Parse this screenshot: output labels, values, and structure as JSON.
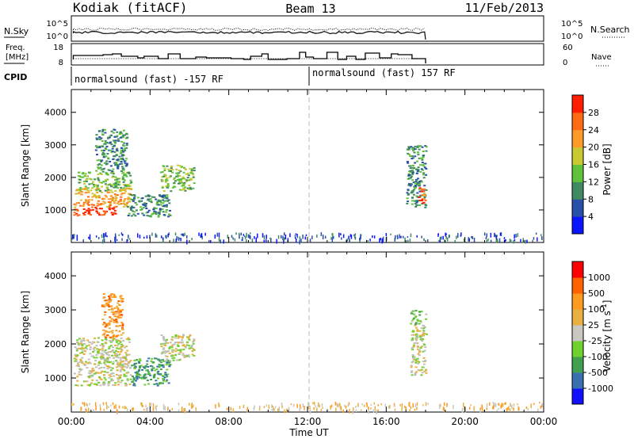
{
  "header": {
    "station": "Kodiak (fitACF)",
    "beam": "Beam 13",
    "date": "11/Feb/2013"
  },
  "summary_panels": {
    "nsky_label": "N.Sky",
    "nsearch_label": "N.Search",
    "freq_label_1": "Freq.",
    "freq_label_2": "[MHz]",
    "nave_label": "Nave",
    "cpid_label": "CPID",
    "noise_ticks_left": [
      "10^5",
      "10^0"
    ],
    "noise_ticks_right": [
      "10^5",
      "10^0"
    ],
    "freq_ticks_left": [
      "18",
      "8"
    ],
    "nave_ticks_right": [
      "60",
      "0"
    ],
    "cpid_segments": [
      "normalsound (fast) -157 RF",
      "normalsound (fast) 157 RF"
    ]
  },
  "colors": {
    "power_scale": [
      "#0a14ff",
      "#2950a8",
      "#3f8a60",
      "#5fc23a",
      "#c8c832",
      "#ff9a28",
      "#ff6a14",
      "#ff1e00"
    ],
    "velocity_scale": [
      "#ff0000",
      "#ff6000",
      "#ff9a20",
      "#e8b040",
      "#c8c8c0",
      "#70d030",
      "#40a050",
      "#3870b0",
      "#1010ff"
    ],
    "gray_scatter": "#c0c0b8"
  },
  "chart_data": [
    {
      "type": "heatmap",
      "name": "power",
      "xlabel": "",
      "ylabel": "Slant Range [km]",
      "y_ticks": [
        "1000",
        "2000",
        "3000",
        "4000"
      ],
      "x_range_hours": [
        0,
        24
      ],
      "colorbar_label": "Power [dB]",
      "colorbar_ticks": [
        "4",
        "8",
        "12",
        "16",
        "20",
        "24",
        "28"
      ],
      "regions": [
        {
          "t0": 0.1,
          "t1": 2.3,
          "r0": 850,
          "r1": 1100,
          "level": 7
        },
        {
          "t0": 0.1,
          "t1": 3.0,
          "r0": 1100,
          "r1": 1700,
          "level": 5
        },
        {
          "t0": 0.3,
          "t1": 3.0,
          "r0": 1600,
          "r1": 2200,
          "level": 3
        },
        {
          "t0": 1.2,
          "t1": 2.8,
          "r0": 2200,
          "r1": 3500,
          "level": 2
        },
        {
          "t0": 2.8,
          "t1": 5.0,
          "r0": 800,
          "r1": 1500,
          "level": 2
        },
        {
          "t0": 4.5,
          "t1": 6.2,
          "r0": 1600,
          "r1": 2400,
          "level": 3
        },
        {
          "t0": 17.0,
          "t1": 18.0,
          "r0": 1100,
          "r1": 3000,
          "level": 2
        },
        {
          "t0": 17.6,
          "t1": 18.0,
          "r0": 1200,
          "r1": 1700,
          "level": 6
        }
      ]
    },
    {
      "type": "heatmap",
      "name": "velocity",
      "xlabel": "Time UT",
      "ylabel": "Slant Range [km]",
      "y_ticks": [
        "1000",
        "2000",
        "3000",
        "4000"
      ],
      "x_ticks": [
        "00:00",
        "04:00",
        "08:00",
        "12:00",
        "16:00",
        "20:00",
        "00:00"
      ],
      "x_range_hours": [
        0,
        24
      ],
      "colorbar_label": "Velocity [m s^-1]",
      "colorbar_ticks": [
        "1000",
        "500",
        "100",
        "25",
        "-25",
        "-100",
        "-500",
        "-1000"
      ],
      "regions": [
        {
          "t0": 0.1,
          "t1": 3.0,
          "r0": 800,
          "r1": 2200,
          "level": 4
        },
        {
          "t0": 1.5,
          "t1": 2.6,
          "r0": 2200,
          "r1": 3500,
          "level": 2
        },
        {
          "t0": 3.0,
          "t1": 5.0,
          "r0": 800,
          "r1": 1600,
          "level": 6
        },
        {
          "t0": 4.5,
          "t1": 6.2,
          "r0": 1500,
          "r1": 2300,
          "level": 4
        },
        {
          "t0": 17.2,
          "t1": 18.0,
          "r0": 1100,
          "r1": 2600,
          "level": 4
        },
        {
          "t0": 17.2,
          "t1": 18.0,
          "r0": 2600,
          "r1": 3000,
          "level": 5
        }
      ]
    }
  ]
}
